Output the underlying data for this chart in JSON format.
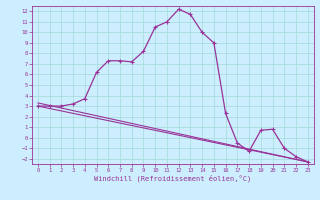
{
  "background_color": "#cceeff",
  "grid_color": "#aadddd",
  "line_color": "#993399",
  "marker": "+",
  "xlabel": "Windchill (Refroidissement éolien,°C)",
  "xlim": [
    -0.5,
    23.5
  ],
  "ylim": [
    -2.5,
    12.5
  ],
  "xticks": [
    0,
    1,
    2,
    3,
    4,
    5,
    6,
    7,
    8,
    9,
    10,
    11,
    12,
    13,
    14,
    15,
    16,
    17,
    18,
    19,
    20,
    21,
    22,
    23
  ],
  "yticks": [
    -2,
    -1,
    0,
    1,
    2,
    3,
    4,
    5,
    6,
    7,
    8,
    9,
    10,
    11,
    12
  ],
  "curve1_x": [
    0,
    1,
    2,
    3,
    4,
    5,
    6,
    7,
    8,
    9,
    10,
    11,
    12,
    13,
    14,
    15,
    16,
    17,
    18,
    19,
    20,
    21,
    22,
    23
  ],
  "curve1_y": [
    3.0,
    3.0,
    3.0,
    3.2,
    3.7,
    6.2,
    7.3,
    7.3,
    7.2,
    8.2,
    10.5,
    11.0,
    12.2,
    11.7,
    10.0,
    9.0,
    2.3,
    -0.5,
    -1.3,
    0.7,
    0.8,
    -1.0,
    -1.8,
    -2.3
  ],
  "line1_x": [
    0,
    23
  ],
  "line1_y": [
    3.0,
    -2.3
  ],
  "line2_x": [
    0,
    23
  ],
  "line2_y": [
    3.3,
    -2.3
  ],
  "extra_points_x": [
    1,
    4
  ],
  "extra_points_y": [
    3.0,
    3.7
  ]
}
